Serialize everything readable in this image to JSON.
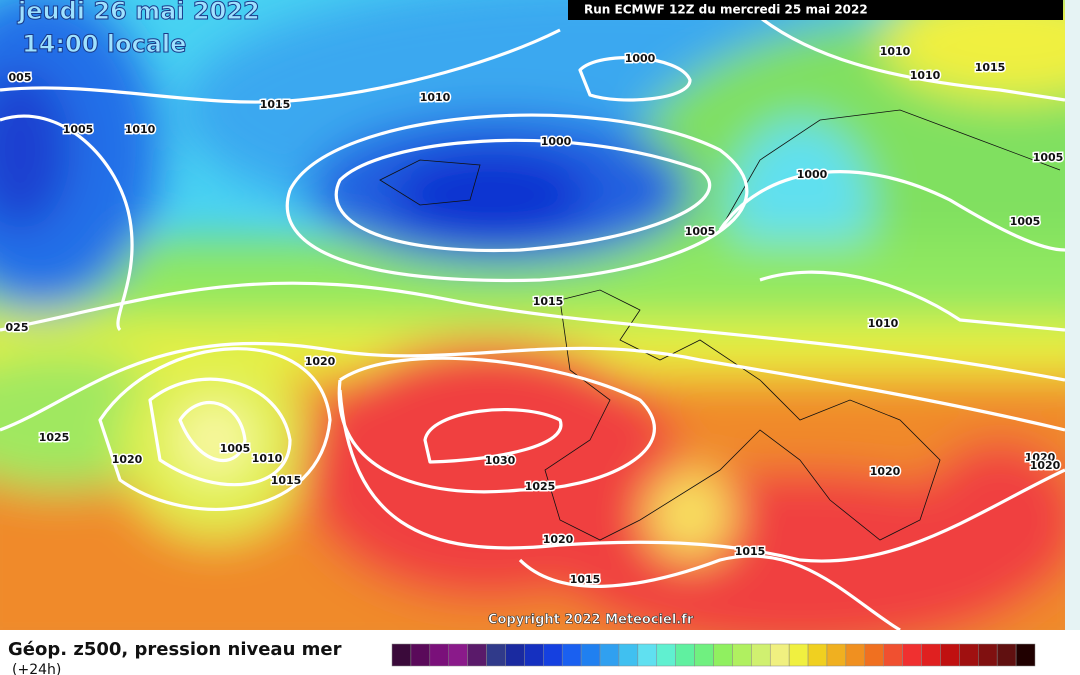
{
  "header": {
    "date": "jeudi 26 mai 2022",
    "time": "14:00 locale",
    "run": "Run ECMWF 12Z du mercredi 25 mai 2022"
  },
  "map": {
    "isobar_labels": [
      "005",
      "1015",
      "1010",
      "1000",
      "1010",
      "1010",
      "1015",
      "1005",
      "1010",
      "1000",
      "1005",
      "1000",
      "1005",
      "1005",
      "1015",
      "1010",
      "025",
      "1020",
      "1025",
      "1005",
      "1010",
      "1020",
      "1015",
      "1030",
      "1025",
      "1020",
      "1020",
      "1020",
      "1020",
      "1015",
      "1015"
    ],
    "copyright": "Copyright 2022 Meteociel.fr"
  },
  "legend": {
    "title": "Géop. z500, pression niveau mer",
    "subtitle": "(+24h)"
  }
}
